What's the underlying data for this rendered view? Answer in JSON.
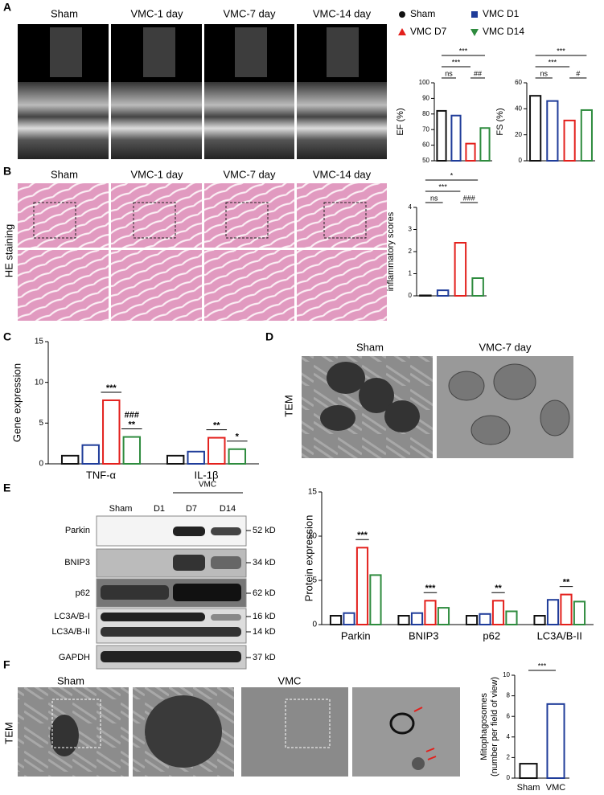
{
  "panels": {
    "A": {
      "letter": "A",
      "columns": [
        "Sham",
        "VMC-1 day",
        "VMC-7 day",
        "VMC-14 day"
      ]
    },
    "B": {
      "letter": "B",
      "columns": [
        "Sham",
        "VMC-1 day",
        "VMC-7 day",
        "VMC-14 day"
      ],
      "row_label": "HE staining"
    },
    "C": {
      "letter": "C"
    },
    "D": {
      "letter": "D",
      "columns": [
        "Sham",
        "VMC-7 day"
      ],
      "row_label": "TEM"
    },
    "E": {
      "letter": "E",
      "group": "VMC",
      "lanes": [
        "Sham",
        "D1",
        "D7",
        "D14"
      ],
      "blots": [
        {
          "names": [
            "Parkin"
          ],
          "sizes": [
            "52 kD"
          ]
        },
        {
          "names": [
            "BNIP3"
          ],
          "sizes": [
            "34 kD"
          ]
        },
        {
          "names": [
            "p62"
          ],
          "sizes": [
            "62 kD"
          ]
        },
        {
          "names": [
            "LC3A/B-I",
            "LC3A/B-II"
          ],
          "sizes": [
            "16 kD",
            "14 kD"
          ]
        },
        {
          "names": [
            "GAPDH"
          ],
          "sizes": [
            "37 kD"
          ]
        }
      ]
    },
    "F": {
      "letter": "F",
      "labels": [
        "Sham",
        "VMC"
      ],
      "row_label": "TEM"
    }
  },
  "legend": [
    {
      "name": "Sham",
      "color": "#111111",
      "marker": "circle"
    },
    {
      "name": "VMC D1",
      "color": "#1f3c99",
      "marker": "square"
    },
    {
      "name": "VMC D7",
      "color": "#e3201c",
      "marker": "triangle"
    },
    {
      "name": "VMC D14",
      "color": "#2e8b3e",
      "marker": "triangle-down"
    }
  ],
  "chart_data": [
    {
      "type": "bar",
      "ylabel": "EF (%)",
      "values": [
        82,
        79,
        61,
        71
      ],
      "colors": [
        "#111111",
        "#1f3c99",
        "#e3201c",
        "#2e8b3e"
      ],
      "ylim": [
        50,
        100
      ],
      "yticks": [
        50,
        60,
        70,
        80,
        90,
        100
      ],
      "annotations": [
        {
          "text": "ns",
          "pair": [
            0,
            1
          ]
        },
        {
          "text": "##",
          "pair": [
            2,
            3
          ]
        },
        {
          "text": "***",
          "pair": [
            0,
            2
          ]
        },
        {
          "text": "***",
          "pair": [
            0,
            3
          ]
        }
      ]
    },
    {
      "type": "bar",
      "ylabel": "FS (%)",
      "values": [
        50,
        46,
        31,
        39
      ],
      "colors": [
        "#111111",
        "#1f3c99",
        "#e3201c",
        "#2e8b3e"
      ],
      "ylim": [
        0,
        60
      ],
      "yticks": [
        0,
        20,
        40,
        60
      ],
      "annotations": [
        {
          "text": "ns",
          "pair": [
            0,
            1
          ]
        },
        {
          "text": "#",
          "pair": [
            2,
            3
          ]
        },
        {
          "text": "***",
          "pair": [
            0,
            2
          ]
        },
        {
          "text": "***",
          "pair": [
            0,
            3
          ]
        }
      ]
    },
    {
      "type": "bar",
      "ylabel": "inflammatory scores",
      "values": [
        0.02,
        0.25,
        2.4,
        0.8
      ],
      "colors": [
        "#111111",
        "#1f3c99",
        "#e3201c",
        "#2e8b3e"
      ],
      "ylim": [
        0,
        4
      ],
      "yticks": [
        0,
        1,
        2,
        3,
        4
      ],
      "annotations": [
        {
          "text": "ns",
          "pair": [
            0,
            1
          ]
        },
        {
          "text": "###",
          "pair": [
            2,
            3
          ]
        },
        {
          "text": "***",
          "pair": [
            0,
            2
          ]
        },
        {
          "text": "*",
          "pair": [
            0,
            3
          ]
        }
      ]
    },
    {
      "type": "grouped-bar",
      "ylabel": "Gene expression",
      "categories": [
        "TNF-α",
        "IL-1β"
      ],
      "series": [
        {
          "color": "#111111",
          "values": [
            1.0,
            1.0
          ]
        },
        {
          "color": "#1f3c99",
          "values": [
            2.3,
            1.5
          ]
        },
        {
          "color": "#e3201c",
          "values": [
            7.8,
            3.2
          ]
        },
        {
          "color": "#2e8b3e",
          "values": [
            3.3,
            1.8
          ]
        }
      ],
      "ylim": [
        0,
        15
      ],
      "yticks": [
        0,
        5,
        10,
        15
      ],
      "annotations": [
        {
          "text": "***",
          "series": 2,
          "category": 0
        },
        {
          "text": "**",
          "series": 3,
          "category": 0
        },
        {
          "text": "###",
          "series": 3,
          "category": 0
        },
        {
          "text": "**",
          "series": 2,
          "category": 1
        },
        {
          "text": "*",
          "series": 3,
          "category": 1
        }
      ]
    },
    {
      "type": "grouped-bar",
      "ylabel": "Protein expression",
      "categories": [
        "Parkin",
        "BNIP3",
        "p62",
        "LC3A/B-II"
      ],
      "series": [
        {
          "color": "#111111",
          "values": [
            1.0,
            1.0,
            1.0,
            1.0
          ]
        },
        {
          "color": "#1f3c99",
          "values": [
            1.3,
            1.3,
            1.2,
            2.8
          ]
        },
        {
          "color": "#e3201c",
          "values": [
            8.7,
            2.7,
            2.7,
            3.4
          ]
        },
        {
          "color": "#2e8b3e",
          "values": [
            5.6,
            1.9,
            1.5,
            2.6
          ]
        }
      ],
      "ylim": [
        0,
        15
      ],
      "yticks": [
        0,
        5,
        10,
        15
      ],
      "annotations": [
        {
          "text": "***",
          "series": 2,
          "category": 0
        },
        {
          "text": "***",
          "series": 2,
          "category": 1
        },
        {
          "text": "**",
          "series": 2,
          "category": 2
        },
        {
          "text": "**",
          "series": 2,
          "category": 3
        }
      ]
    },
    {
      "type": "bar",
      "ylabel": [
        "Mitophagosomes",
        "(number per field of view)"
      ],
      "categories": [
        "Sham",
        "VMC"
      ],
      "values": [
        1.4,
        7.2
      ],
      "colors": [
        "#111111",
        "#1f3c99"
      ],
      "ylim": [
        0,
        10
      ],
      "yticks": [
        0,
        2,
        4,
        6,
        8,
        10
      ],
      "annotations": [
        {
          "text": "***",
          "pair": [
            0,
            1
          ]
        }
      ]
    }
  ]
}
